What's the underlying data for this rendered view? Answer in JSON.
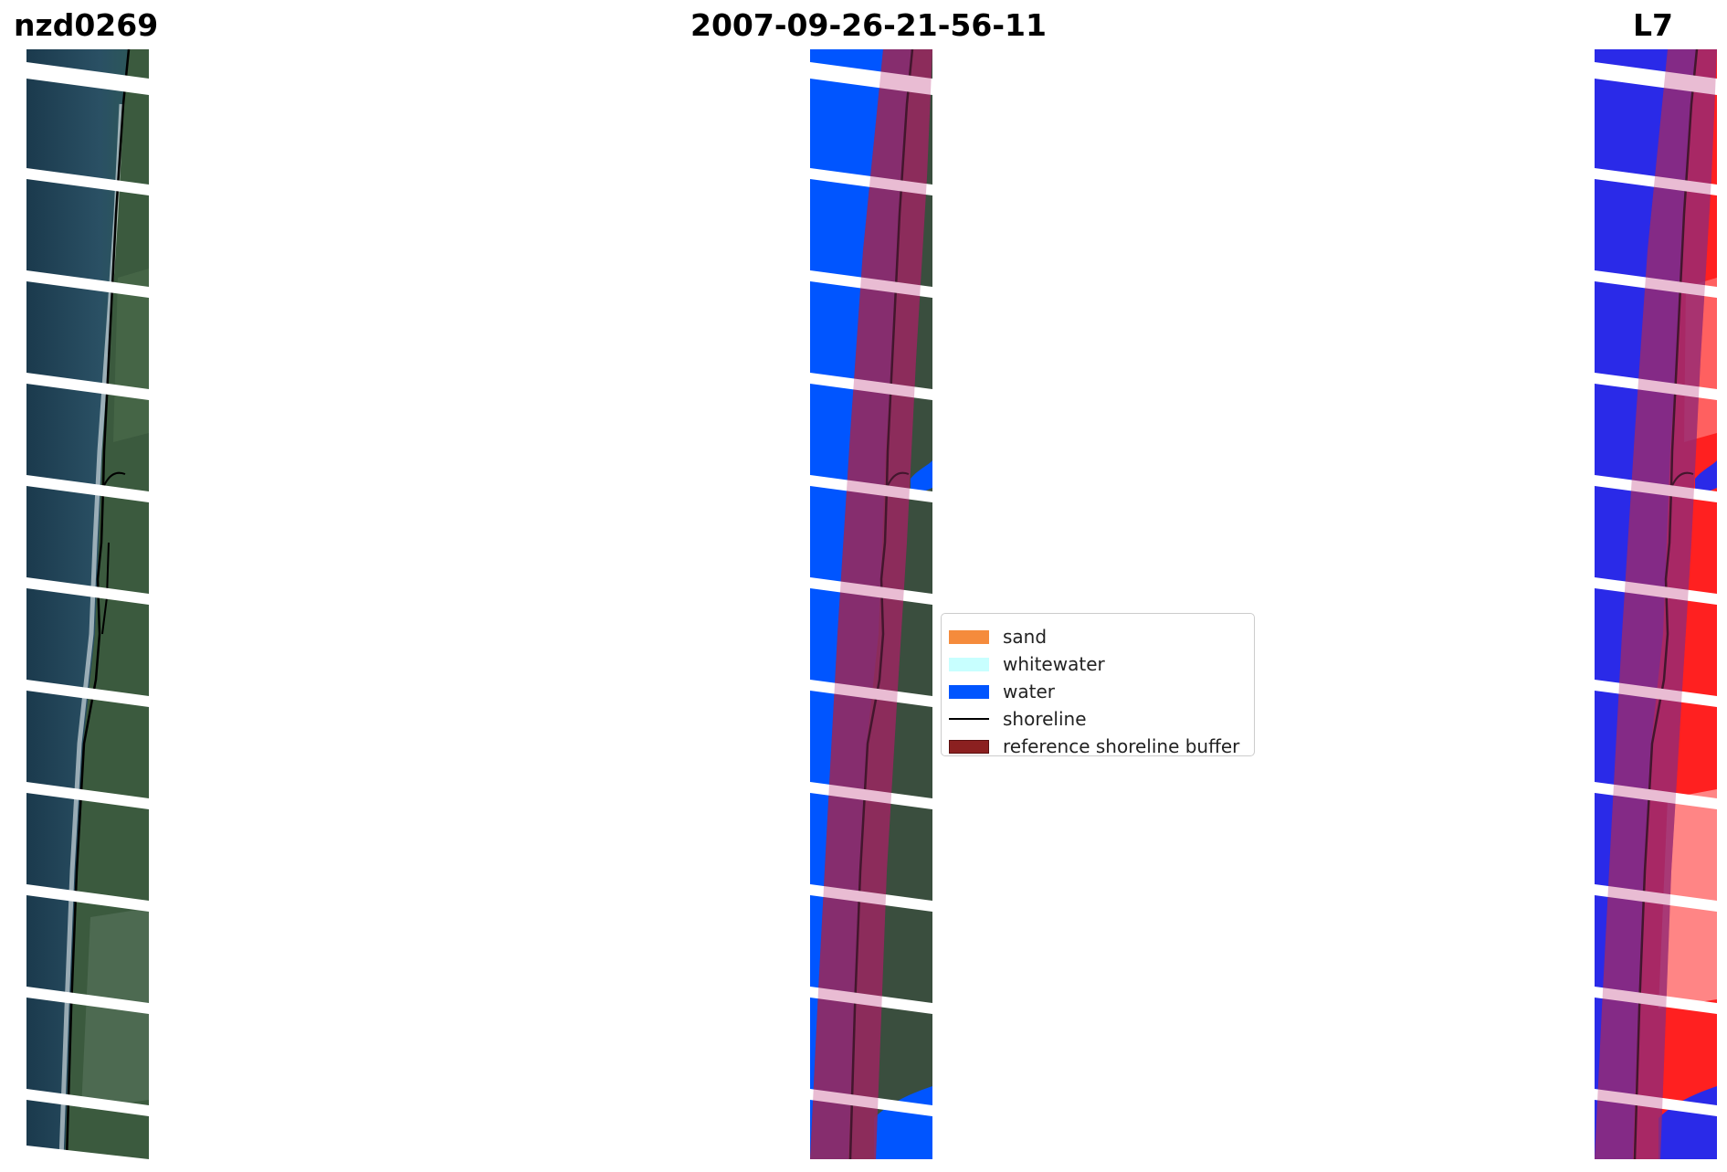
{
  "titles": {
    "site": "nzd0269",
    "date": "2007-09-26-21-56-11",
    "satellite": "L7"
  },
  "legend": {
    "items": [
      {
        "label": "sand",
        "kind": "patch",
        "color": "#f58b3c"
      },
      {
        "label": "whitewater",
        "kind": "patch",
        "color": "#c8ffff"
      },
      {
        "label": "water",
        "kind": "patch",
        "color": "#0055ff"
      },
      {
        "label": "shoreline",
        "kind": "line",
        "color": "#000000"
      },
      {
        "label": "reference shoreline buffer",
        "kind": "patch",
        "color": "#8b2020",
        "edge": "#5a1010"
      }
    ]
  }
}
